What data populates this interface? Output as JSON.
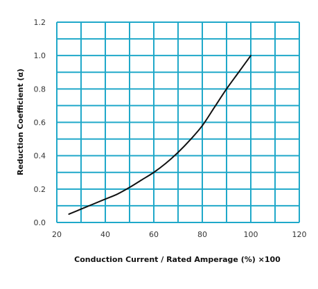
{
  "chart_data": {
    "type": "line",
    "title": "",
    "xlabel": "Conduction Current / Rated Amperage (%) ×100",
    "ylabel": "Reduction Coefficient (α)",
    "xlim": [
      20,
      120
    ],
    "ylim": [
      0.0,
      1.2
    ],
    "x_ticks": [
      "20",
      "40",
      "60",
      "80",
      "100",
      "120"
    ],
    "y_ticks": [
      "0.0",
      "0.2",
      "0.4",
      "0.6",
      "0.8",
      "1.0",
      "1.2"
    ],
    "x_grid_step": 10,
    "y_grid_step": 0.1,
    "grid": true,
    "grid_color": "#1fa8c9",
    "line_color": "#111111",
    "series": [
      {
        "x": [
          25,
          30,
          35,
          40,
          45,
          50,
          55,
          60,
          65,
          70,
          75,
          80,
          85,
          90,
          95,
          100
        ],
        "y": [
          0.05,
          0.08,
          0.11,
          0.14,
          0.17,
          0.21,
          0.255,
          0.3,
          0.355,
          0.42,
          0.495,
          0.58,
          0.69,
          0.8,
          0.9,
          1.0
        ]
      }
    ]
  }
}
